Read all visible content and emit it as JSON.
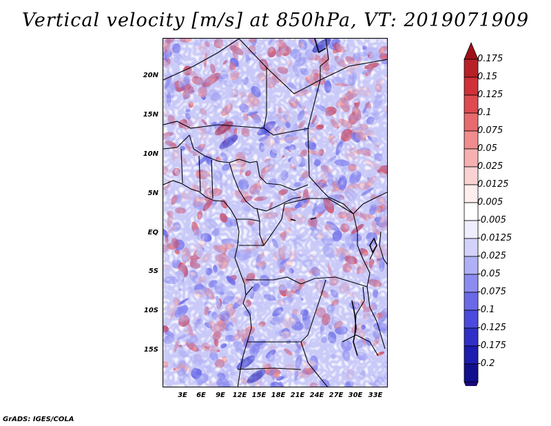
{
  "title": "Vertical velocity [m/s] at 850hPa, VT: 2019071909",
  "credit": "GrADS: IGES/COLA",
  "map": {
    "lat_ticks": [
      "20N",
      "15N",
      "10N",
      "5N",
      "EQ",
      "5S",
      "10S",
      "15S"
    ],
    "lon_ticks": [
      "3E",
      "6E",
      "9E",
      "12E",
      "15E",
      "18E",
      "21E",
      "24E",
      "27E",
      "30E",
      "33E"
    ]
  },
  "colorbar": {
    "labels": [
      "0.175",
      "0.15",
      "0.125",
      "0.1",
      "0.075",
      "0.05",
      "0.025",
      "0.0125",
      "0.005",
      "-0.005",
      "-0.0125",
      "-0.025",
      "-0.05",
      "-0.075",
      "-0.1",
      "-0.125",
      "-0.175",
      "-0.2"
    ],
    "colors": [
      "#a01018",
      "#b82028",
      "#d03038",
      "#de4a50",
      "#e86a6e",
      "#f08c8e",
      "#f6b0b0",
      "#fbd2d2",
      "#ffeeee",
      "#ffffff",
      "#eeeeff",
      "#d2d2fb",
      "#b0b0f6",
      "#8c8cf0",
      "#6a6ae8",
      "#4a4ade",
      "#3030c8",
      "#1c1cae",
      "#10108e",
      "#1a0a80"
    ]
  }
}
